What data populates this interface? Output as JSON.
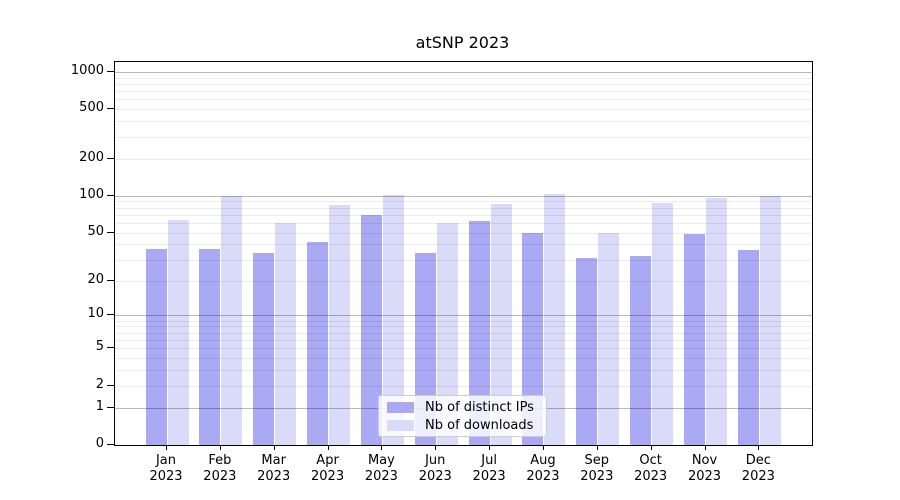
{
  "chart_data": {
    "type": "bar",
    "title": "atSNP 2023",
    "categories": [
      "Jan",
      "Feb",
      "Mar",
      "Apr",
      "May",
      "Jun",
      "Jul",
      "Aug",
      "Sep",
      "Oct",
      "Nov",
      "Dec"
    ],
    "year": "2023",
    "series": [
      {
        "name": "Nb of distinct IPs",
        "color": "#a9a9f4",
        "values": [
          37,
          37,
          34,
          42,
          70,
          34,
          62,
          50,
          31,
          32,
          49,
          36
        ]
      },
      {
        "name": "Nb of downloads",
        "color": "#dadaf9",
        "values": [
          63,
          100,
          60,
          84,
          101,
          60,
          85,
          103,
          50,
          88,
          95,
          100
        ]
      }
    ],
    "yscale": "log1p",
    "ylim": [
      0,
      1200
    ],
    "yticks": [
      0,
      1,
      2,
      5,
      10,
      20,
      50,
      100,
      200,
      500,
      1000
    ],
    "major_gridlines": [
      1,
      10,
      100,
      1000
    ],
    "minor_gridlines": [
      2,
      3,
      4,
      5,
      6,
      7,
      8,
      9,
      20,
      30,
      40,
      50,
      60,
      70,
      80,
      90,
      200,
      300,
      400,
      500,
      600,
      700,
      800,
      900
    ],
    "grid": "on",
    "legend_position": "lower center",
    "xlabel": "",
    "ylabel": ""
  },
  "colors": {
    "background": "#ffffff",
    "spine": "#000000",
    "tick_label": "#000000",
    "major_grid": "#bdbdbd",
    "minor_grid": "#ececec",
    "legend_border": "#cccccc",
    "series_distinct_ips": "#a9a9f4",
    "series_downloads": "#dadaf9"
  }
}
